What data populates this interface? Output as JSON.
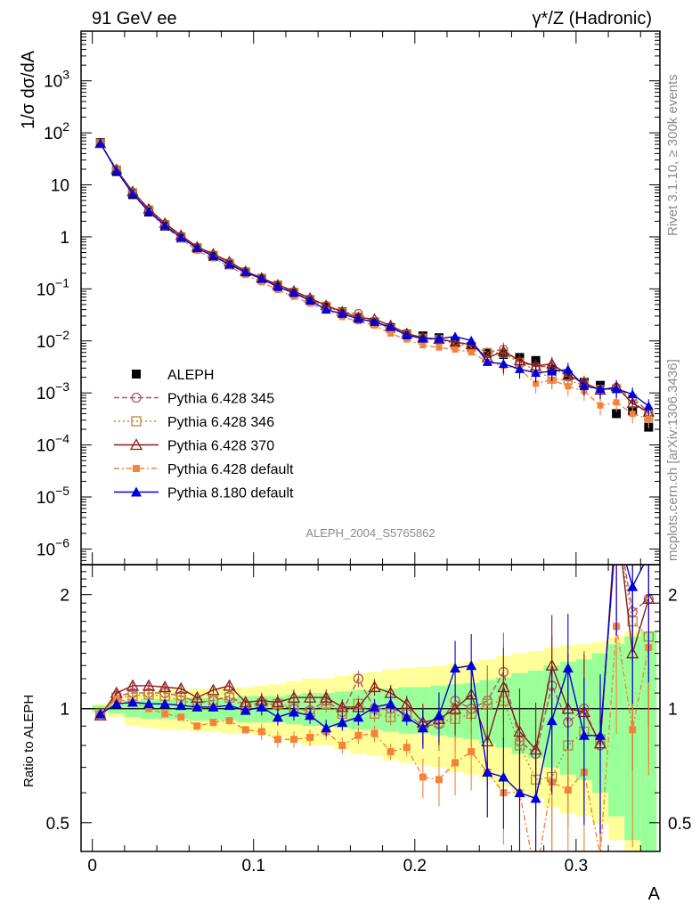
{
  "header": {
    "left": "91 GeV ee",
    "right": "γ*/Z (Hadronic)"
  },
  "side_labels": {
    "rivet": "Rivet 3.1.10, ≥ 300k events",
    "mcplots": "mcplots.cern.ch [arXiv:1306.3436]"
  },
  "analysis_label": "ALEPH_2004_S5765862",
  "colors": {
    "aleph": "#000000",
    "p345": "#b5545c",
    "p346": "#b8863b",
    "p370": "#8b1a1a",
    "p6def": "#f5823a",
    "p8def": "#0000dd",
    "band_yellow": "#ffff99",
    "band_green": "#99ff99"
  },
  "chart_data": [
    {
      "type": "line",
      "panel": "main",
      "ylabel": "1/σ dσ/dA",
      "yscale": "log",
      "ylim": [
        5e-07,
        9000
      ],
      "xlim": [
        -0.007,
        0.352
      ],
      "y_ticks": [
        {
          "label_base": "10",
          "label_exp": "3",
          "value": 1000
        },
        {
          "label_base": "10",
          "label_exp": "2",
          "value": 100
        },
        {
          "label_base": "10",
          "label_exp": "",
          "value": 10
        },
        {
          "label_base": "1",
          "label_exp": "",
          "value": 1
        },
        {
          "label_base": "10",
          "label_exp": "−1",
          "value": 0.1
        },
        {
          "label_base": "10",
          "label_exp": "−2",
          "value": 0.01
        },
        {
          "label_base": "10",
          "label_exp": "−3",
          "value": 0.001
        },
        {
          "label_base": "10",
          "label_exp": "−4",
          "value": 0.0001
        },
        {
          "label_base": "10",
          "label_exp": "−5",
          "value": 1e-05
        },
        {
          "label_base": "10",
          "label_exp": "−6",
          "value": 1e-06
        }
      ],
      "x": [
        0.005,
        0.015,
        0.025,
        0.035,
        0.045,
        0.055,
        0.065,
        0.075,
        0.085,
        0.095,
        0.105,
        0.115,
        0.125,
        0.135,
        0.145,
        0.155,
        0.165,
        0.175,
        0.185,
        0.195,
        0.205,
        0.215,
        0.225,
        0.235,
        0.245,
        0.255,
        0.265,
        0.275,
        0.285,
        0.295,
        0.305,
        0.315,
        0.325,
        0.335,
        0.345
      ],
      "data_series": {
        "name": "ALEPH",
        "values": [
          65,
          18,
          6.5,
          3.0,
          1.6,
          0.95,
          0.6,
          0.42,
          0.29,
          0.21,
          0.155,
          0.115,
          0.085,
          0.062,
          0.045,
          0.036,
          0.028,
          0.023,
          0.018,
          0.0135,
          0.0125,
          0.0115,
          0.0095,
          0.0078,
          0.0058,
          0.0055,
          0.0048,
          0.0042,
          0.0028,
          0.0022,
          0.0016,
          0.0014,
          0.0004,
          0.00045,
          0.00022
        ]
      },
      "series": [
        {
          "name": "Pythia 6.428 345",
          "key": "p345",
          "marker": "circle-open",
          "dash": "6,3",
          "ratio": [
            0.96,
            1.08,
            1.1,
            1.1,
            1.1,
            1.08,
            1.04,
            1.05,
            1.08,
            1.02,
            1.04,
            1.02,
            1.0,
            0.99,
            1.05,
            0.98,
            1.2,
            1.0,
            1.0,
            0.97,
            0.9,
            0.91,
            1.05,
            1.0,
            1.05,
            1.25,
            0.82,
            0.76,
            1.15,
            0.92,
            1.0,
            0.8,
            3.2,
            1.8,
            1.95
          ]
        },
        {
          "name": "Pythia 6.428 346",
          "key": "p346",
          "marker": "square-open",
          "dash": "2,3",
          "ratio": [
            0.97,
            1.07,
            1.08,
            1.09,
            1.08,
            1.05,
            1.03,
            1.05,
            1.07,
            1.01,
            1.03,
            1.03,
            1.01,
            0.98,
            1.03,
            0.97,
            1.03,
            0.97,
            0.95,
            0.97,
            0.9,
            0.92,
            0.94,
            0.97,
            1.03,
            1.05,
            0.8,
            0.65,
            0.66,
            0.8,
            0.87,
            0.83,
            3.0,
            1.7,
            1.55
          ]
        },
        {
          "name": "Pythia 6.428 370",
          "key": "p370",
          "marker": "triangle-open",
          "dash": "",
          "ratio": [
            0.96,
            1.1,
            1.15,
            1.15,
            1.14,
            1.13,
            1.07,
            1.12,
            1.15,
            1.04,
            1.05,
            1.04,
            1.07,
            1.07,
            1.07,
            1.01,
            1.01,
            1.14,
            1.1,
            1.03,
            0.92,
            0.94,
            1.0,
            1.09,
            0.82,
            1.14,
            0.87,
            0.78,
            1.3,
            1.0,
            0.98,
            0.81,
            3.3,
            1.4,
            1.95
          ]
        },
        {
          "name": "Pythia 6.428 default",
          "key": "p6def",
          "marker": "square-filled",
          "dash": "6,3,2,3",
          "ratio": [
            0.97,
            1.06,
            1.04,
            1.0,
            0.97,
            0.95,
            0.9,
            0.92,
            0.93,
            0.88,
            0.87,
            0.83,
            0.83,
            0.84,
            0.87,
            0.8,
            0.85,
            0.86,
            0.77,
            0.79,
            0.66,
            0.65,
            0.72,
            0.77,
            0.68,
            0.6,
            0.6,
            0.36,
            0.64,
            0.61,
            0.68,
            0.41,
            1.65,
            0.88,
            1.45
          ]
        },
        {
          "name": "Pythia 8.180 default",
          "key": "p8def",
          "marker": "triangle-filled",
          "dash": "",
          "ratio": [
            0.97,
            1.03,
            1.04,
            1.03,
            1.03,
            1.02,
            1.01,
            1.01,
            1.02,
            0.99,
            1.01,
            0.95,
            0.98,
            0.96,
            0.89,
            0.92,
            0.95,
            1.01,
            1.03,
            0.95,
            0.89,
            0.96,
            1.28,
            1.3,
            0.68,
            0.66,
            0.6,
            0.58,
            0.93,
            1.28,
            0.85,
            0.85,
            3.0,
            2.1,
            2.55
          ]
        }
      ]
    },
    {
      "type": "line",
      "panel": "ratio",
      "ylabel": "Ratio to ALEPH",
      "xlabel": "A",
      "yscale": "log",
      "ylim": [
        0.42,
        2.4
      ],
      "xlim": [
        -0.007,
        0.352
      ],
      "y_ticks": [
        {
          "label": "0.5",
          "value": 0.5
        },
        {
          "label": "1",
          "value": 1
        },
        {
          "label": "2",
          "value": 2
        }
      ],
      "x_ticks": [
        {
          "label": "0",
          "value": 0
        },
        {
          "label": "0.1",
          "value": 0.1
        },
        {
          "label": "0.2",
          "value": 0.2
        },
        {
          "label": "0.3",
          "value": 0.3
        }
      ],
      "uncertainty_band": {
        "yellow_halfwidth": [
          0.03,
          0.05,
          0.1,
          0.11,
          0.12,
          0.12,
          0.13,
          0.13,
          0.14,
          0.14,
          0.15,
          0.16,
          0.18,
          0.2,
          0.2,
          0.22,
          0.24,
          0.25,
          0.27,
          0.28,
          0.29,
          0.3,
          0.32,
          0.33,
          0.35,
          0.38,
          0.4,
          0.42,
          0.45,
          0.47,
          0.48,
          0.5,
          0.55,
          0.6,
          0.6
        ],
        "green_halfwidth": [
          0.02,
          0.03,
          0.05,
          0.06,
          0.06,
          0.06,
          0.07,
          0.07,
          0.07,
          0.08,
          0.08,
          0.08,
          0.09,
          0.1,
          0.1,
          0.11,
          0.12,
          0.12,
          0.13,
          0.14,
          0.14,
          0.15,
          0.16,
          0.17,
          0.19,
          0.21,
          0.24,
          0.26,
          0.3,
          0.33,
          0.35,
          0.4,
          0.48,
          0.55,
          0.6
        ]
      }
    }
  ],
  "legend": {
    "placement": "lower-left",
    "entries": [
      {
        "label": "ALEPH",
        "key": "aleph"
      },
      {
        "label": "Pythia 6.428 345",
        "key": "p345"
      },
      {
        "label": "Pythia 6.428 346",
        "key": "p346"
      },
      {
        "label": "Pythia 6.428 370",
        "key": "p370"
      },
      {
        "label": "Pythia 6.428 default",
        "key": "p6def"
      },
      {
        "label": "Pythia 8.180 default",
        "key": "p8def"
      }
    ]
  }
}
